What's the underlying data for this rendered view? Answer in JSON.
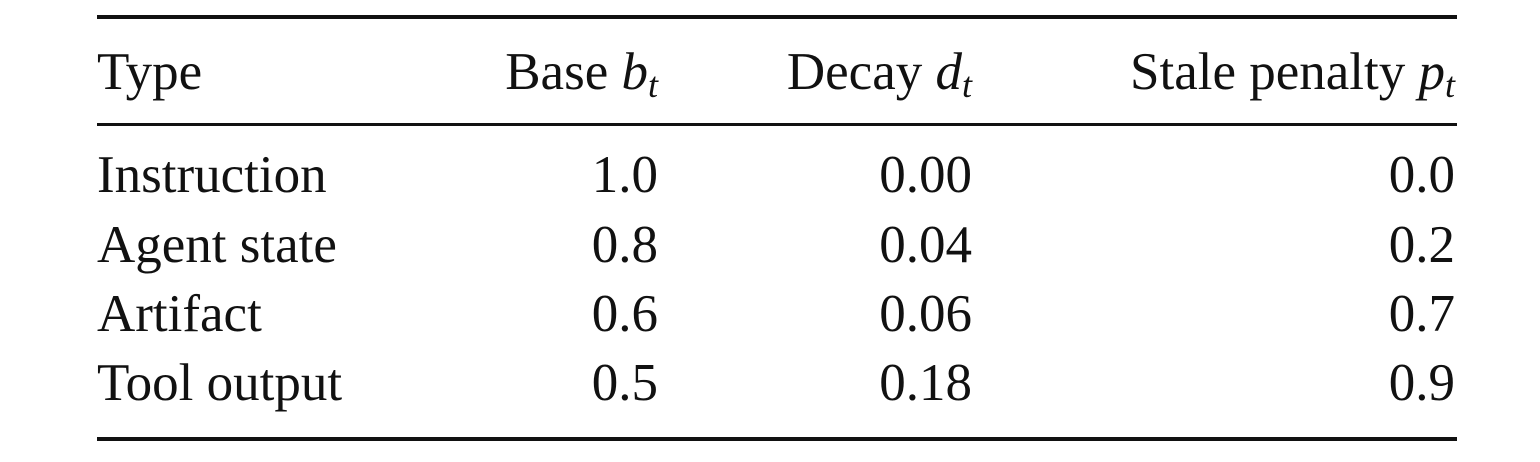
{
  "table": {
    "headers": [
      {
        "text": "Type"
      },
      {
        "text": "Base",
        "symbol": "b",
        "subscript": "t"
      },
      {
        "text": "Decay",
        "symbol": "d",
        "subscript": "t"
      },
      {
        "text": "Stale penalty",
        "symbol": "p",
        "subscript": "t"
      }
    ],
    "rows": [
      [
        "Instruction",
        "1.0",
        "0.00",
        "0.0"
      ],
      [
        "Agent state",
        "0.8",
        "0.04",
        "0.2"
      ],
      [
        "Artifact",
        "0.6",
        "0.06",
        "0.7"
      ],
      [
        "Tool output",
        "0.5",
        "0.18",
        "0.9"
      ]
    ]
  }
}
